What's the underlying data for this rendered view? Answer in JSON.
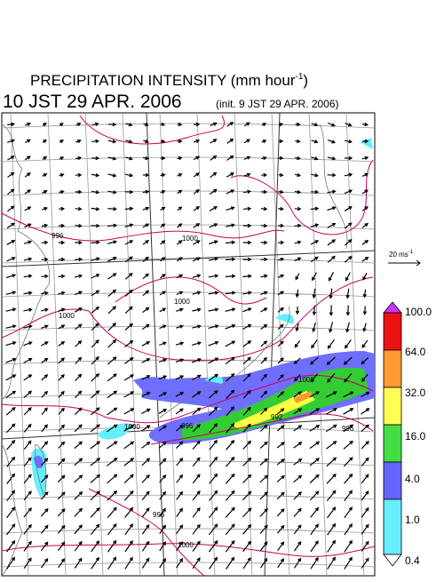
{
  "header": {
    "title": "PRECIPITATION INTENSITY (mm hour",
    "title_superscript": "-1",
    "title_close": ")",
    "time": "10 JST 29 APR. 2006",
    "init": "(init. 9 JST 29 APR. 2006)"
  },
  "wind_reference": {
    "label": "20 ms",
    "superscript": "-1"
  },
  "colorbar": {
    "labels": [
      "100.0",
      "64.0",
      "32.0",
      "16.0",
      "4.0",
      "1.0",
      "0.4"
    ]
  },
  "isobar_labels": [
    "996",
    "1000",
    "1000",
    "1000",
    "1000",
    "1000",
    "996",
    "992",
    "996",
    "996",
    "1000"
  ]
}
